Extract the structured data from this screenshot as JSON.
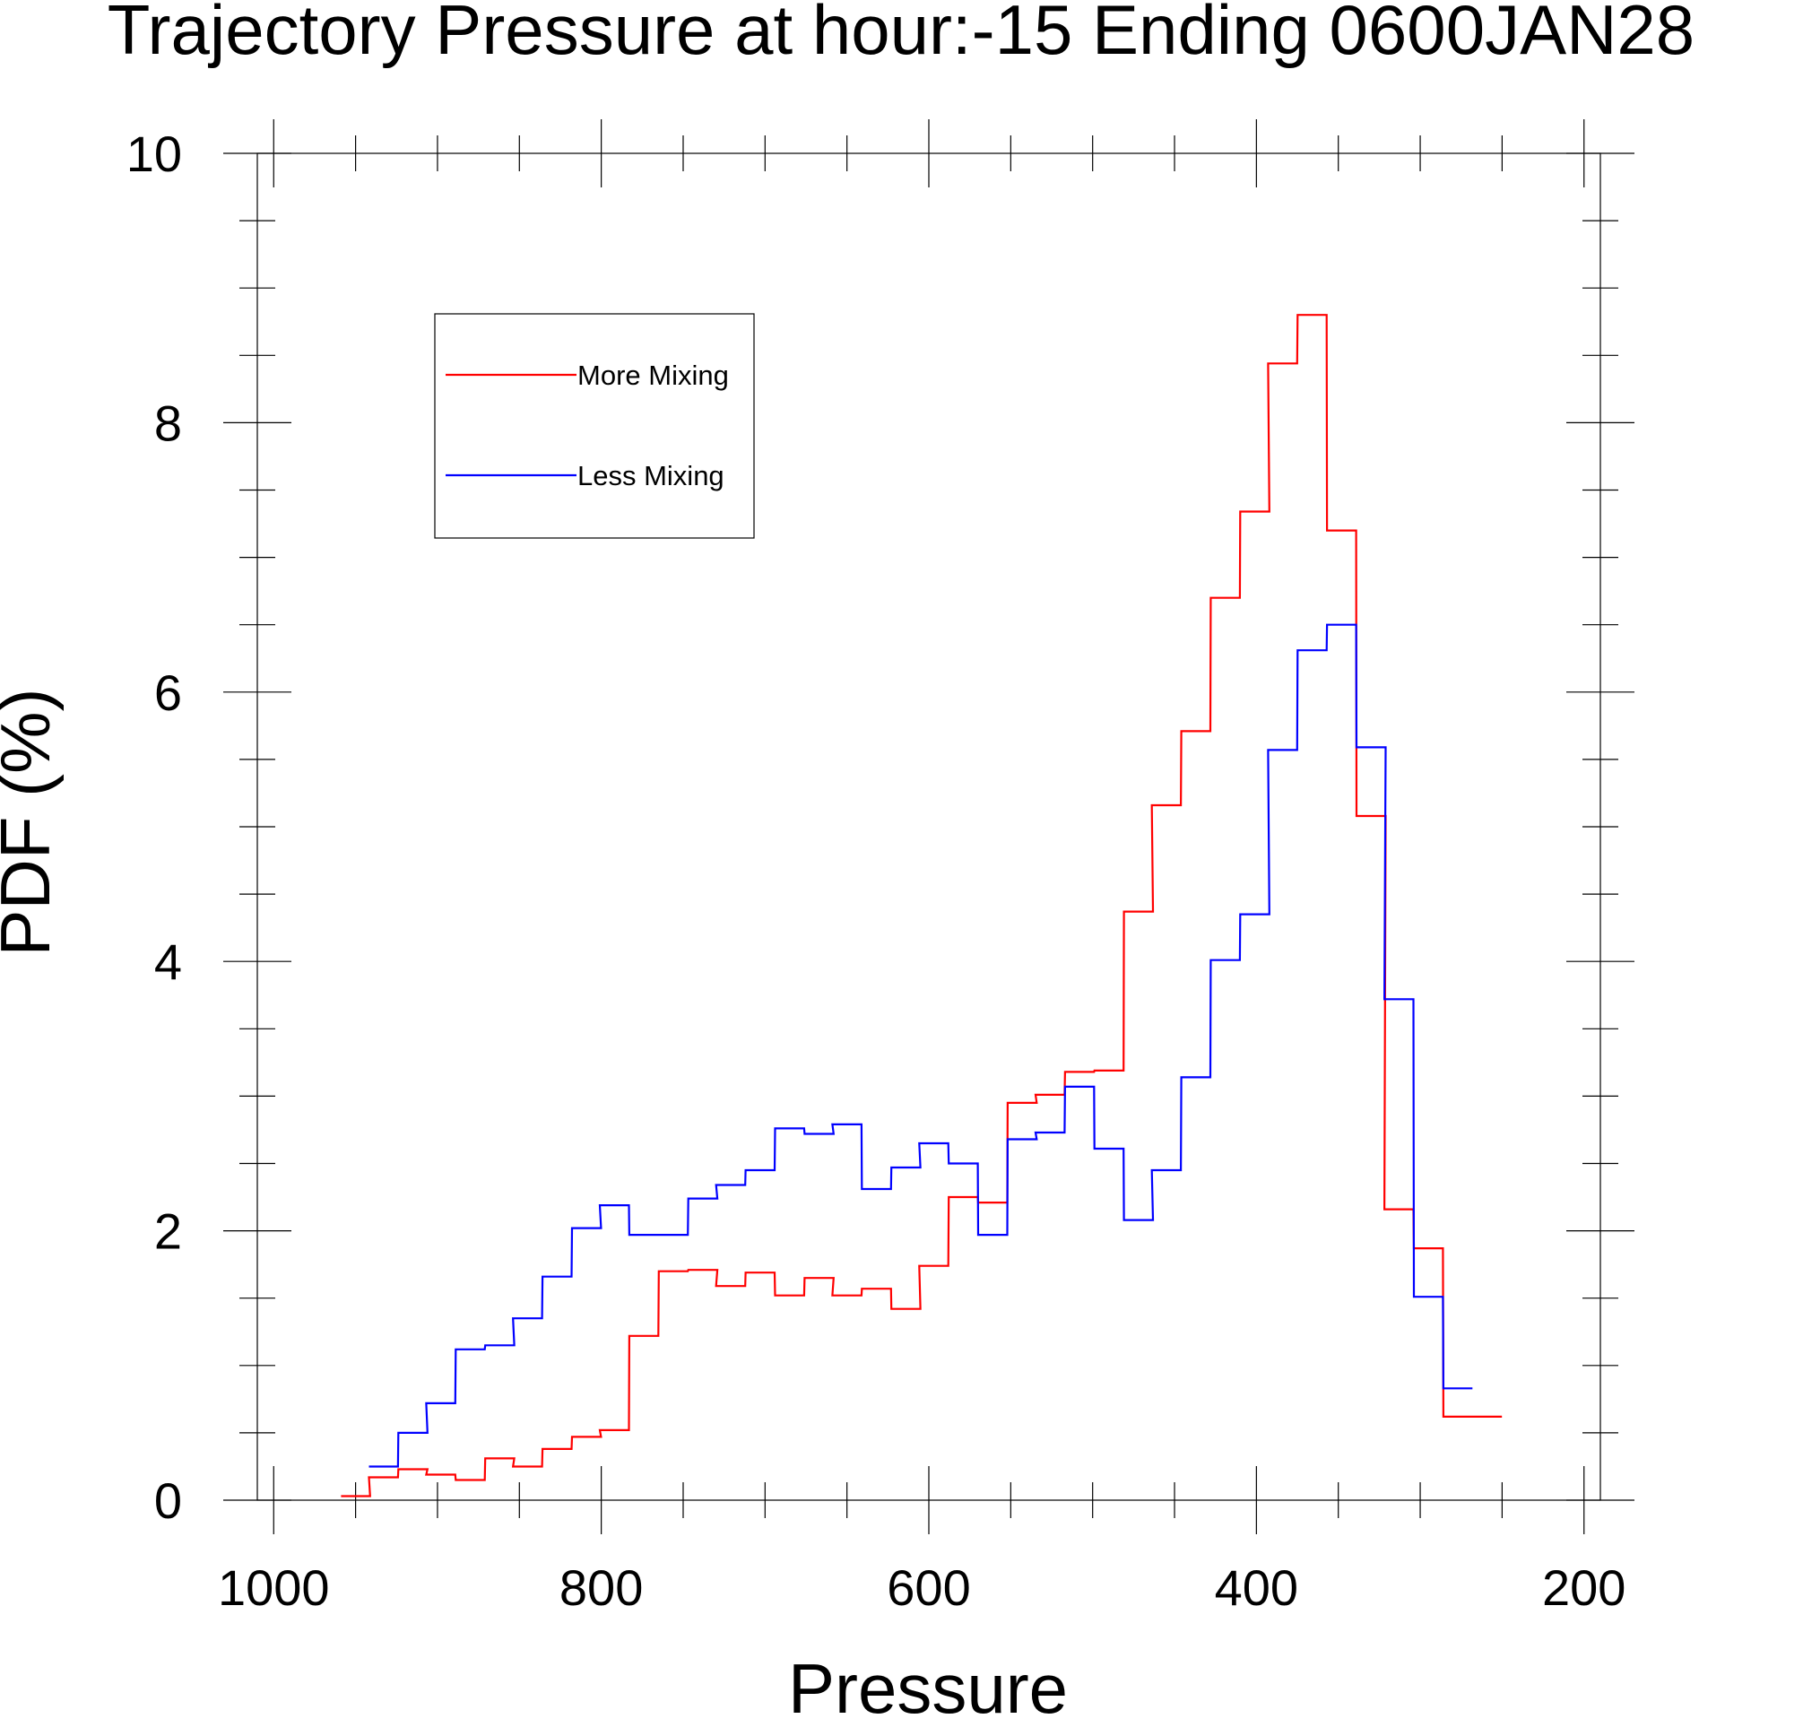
{
  "chart_data": {
    "type": "line",
    "step": true,
    "title": "Trajectory Pressure at hour:-15 Ending 0600JAN28",
    "xlabel": "Pressure",
    "ylabel": "PDF (%)",
    "xlim": [
      1010,
      190
    ],
    "ylim": [
      0,
      10
    ],
    "x_reversed": true,
    "x_ticks": [
      1000,
      800,
      600,
      400,
      200
    ],
    "x_tick_labels": [
      "1000",
      "800",
      "600",
      "400",
      "200"
    ],
    "y_ticks": [
      0,
      2,
      4,
      6,
      8,
      10
    ],
    "y_tick_labels": [
      "0",
      "2",
      "4",
      "6",
      "8",
      "10"
    ],
    "grid": false,
    "legend_position": "top-left",
    "series": [
      {
        "name": "More Mixing",
        "color": "#ff0000",
        "x": [
          950,
          933,
          915,
          898,
          880,
          862,
          845,
          827,
          809,
          792,
          774,
          756,
          738,
          721,
          703,
          685,
          667,
          650,
          632,
          614,
          597,
          579,
          561,
          543,
          526,
          508,
          490,
          472,
          455,
          437,
          419,
          401,
          384,
          366,
          348,
          330,
          313,
          295,
          277,
          259
        ],
        "values": [
          0.03,
          0.17,
          0.23,
          0.19,
          0.15,
          0.31,
          0.25,
          0.38,
          0.47,
          0.52,
          1.22,
          1.7,
          1.71,
          1.59,
          1.69,
          1.52,
          1.65,
          1.52,
          1.57,
          1.42,
          1.74,
          2.25,
          2.21,
          2.95,
          3.01,
          3.18,
          3.19,
          4.37,
          5.16,
          5.71,
          6.7,
          7.34,
          8.44,
          8.8,
          7.2,
          5.08,
          2.16,
          1.87,
          0.62,
          0.62
        ]
      },
      {
        "name": "Less Mixing",
        "color": "#0000ff",
        "x": [
          933,
          915,
          898,
          880,
          862,
          845,
          827,
          809,
          792,
          774,
          756,
          738,
          721,
          703,
          685,
          667,
          650,
          632,
          614,
          597,
          579,
          561,
          543,
          526,
          508,
          490,
          472,
          455,
          437,
          419,
          401,
          384,
          366,
          348,
          330,
          313,
          295,
          277
        ],
        "values": [
          0.25,
          0.5,
          0.72,
          1.12,
          1.15,
          1.35,
          1.66,
          2.02,
          2.19,
          1.97,
          1.97,
          2.24,
          2.34,
          2.45,
          2.76,
          2.72,
          2.79,
          2.31,
          2.47,
          2.65,
          2.5,
          1.97,
          2.68,
          2.73,
          3.07,
          2.61,
          2.08,
          2.45,
          3.14,
          4.01,
          4.35,
          5.57,
          6.31,
          6.5,
          5.59,
          3.72,
          1.51,
          0.83
        ]
      }
    ]
  }
}
